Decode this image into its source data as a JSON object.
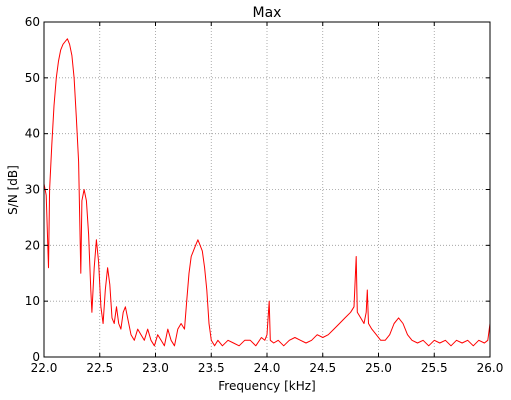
{
  "chart_data": {
    "type": "line",
    "title": "Max",
    "xlabel": "Frequency [kHz]",
    "ylabel": "S/N [dB]",
    "xlim": [
      22.0,
      26.0
    ],
    "ylim": [
      0,
      60
    ],
    "x_ticks": [
      "22.0",
      "22.5",
      "23.0",
      "23.5",
      "24.0",
      "24.5",
      "25.0",
      "25.5",
      "26.0"
    ],
    "y_ticks": [
      "0",
      "10",
      "20",
      "30",
      "40",
      "50",
      "60"
    ],
    "grid": true,
    "series": [
      {
        "color": "#ff0000",
        "points": [
          [
            22.0,
            31
          ],
          [
            22.02,
            29
          ],
          [
            22.04,
            16
          ],
          [
            22.05,
            30
          ],
          [
            22.07,
            38
          ],
          [
            22.09,
            45
          ],
          [
            22.11,
            50
          ],
          [
            22.13,
            53
          ],
          [
            22.15,
            55
          ],
          [
            22.17,
            56
          ],
          [
            22.19,
            56.5
          ],
          [
            22.21,
            57
          ],
          [
            22.23,
            56
          ],
          [
            22.25,
            54
          ],
          [
            22.27,
            50
          ],
          [
            22.29,
            43
          ],
          [
            22.31,
            35
          ],
          [
            22.32,
            25
          ],
          [
            22.33,
            15
          ],
          [
            22.34,
            28
          ],
          [
            22.36,
            30
          ],
          [
            22.38,
            28
          ],
          [
            22.4,
            22
          ],
          [
            22.42,
            12
          ],
          [
            22.43,
            8
          ],
          [
            22.45,
            16
          ],
          [
            22.47,
            21
          ],
          [
            22.49,
            17
          ],
          [
            22.51,
            9
          ],
          [
            22.53,
            6
          ],
          [
            22.55,
            12
          ],
          [
            22.57,
            16
          ],
          [
            22.59,
            13
          ],
          [
            22.61,
            7
          ],
          [
            22.63,
            6
          ],
          [
            22.65,
            9
          ],
          [
            22.67,
            6
          ],
          [
            22.69,
            5
          ],
          [
            22.71,
            8
          ],
          [
            22.73,
            9
          ],
          [
            22.75,
            7
          ],
          [
            22.78,
            4
          ],
          [
            22.81,
            3
          ],
          [
            22.84,
            5
          ],
          [
            22.87,
            4
          ],
          [
            22.9,
            3
          ],
          [
            22.93,
            5
          ],
          [
            22.96,
            3
          ],
          [
            22.99,
            2
          ],
          [
            23.02,
            4
          ],
          [
            23.05,
            3
          ],
          [
            23.08,
            2
          ],
          [
            23.11,
            5
          ],
          [
            23.14,
            3
          ],
          [
            23.17,
            2
          ],
          [
            23.2,
            5
          ],
          [
            23.23,
            6
          ],
          [
            23.26,
            5
          ],
          [
            23.28,
            10
          ],
          [
            23.3,
            15
          ],
          [
            23.32,
            18
          ],
          [
            23.34,
            19
          ],
          [
            23.36,
            20
          ],
          [
            23.38,
            21
          ],
          [
            23.4,
            20
          ],
          [
            23.42,
            19
          ],
          [
            23.44,
            16
          ],
          [
            23.46,
            12
          ],
          [
            23.48,
            6
          ],
          [
            23.5,
            3
          ],
          [
            23.53,
            2
          ],
          [
            23.56,
            3
          ],
          [
            23.6,
            2
          ],
          [
            23.65,
            3
          ],
          [
            23.7,
            2.5
          ],
          [
            23.75,
            2
          ],
          [
            23.8,
            3
          ],
          [
            23.85,
            3
          ],
          [
            23.9,
            2
          ],
          [
            23.95,
            3.5
          ],
          [
            23.98,
            3
          ],
          [
            24.0,
            4
          ],
          [
            24.02,
            10
          ],
          [
            24.03,
            3
          ],
          [
            24.06,
            2.5
          ],
          [
            24.1,
            3
          ],
          [
            24.15,
            2
          ],
          [
            24.2,
            3
          ],
          [
            24.25,
            3.5
          ],
          [
            24.3,
            3
          ],
          [
            24.35,
            2.5
          ],
          [
            24.4,
            3
          ],
          [
            24.45,
            4
          ],
          [
            24.5,
            3.5
          ],
          [
            24.55,
            4
          ],
          [
            24.6,
            5
          ],
          [
            24.65,
            6
          ],
          [
            24.7,
            7
          ],
          [
            24.75,
            8
          ],
          [
            24.78,
            9
          ],
          [
            24.8,
            18
          ],
          [
            24.81,
            8
          ],
          [
            24.84,
            7
          ],
          [
            24.87,
            6
          ],
          [
            24.89,
            8
          ],
          [
            24.9,
            12
          ],
          [
            24.91,
            6
          ],
          [
            24.94,
            5
          ],
          [
            24.98,
            4
          ],
          [
            25.02,
            3
          ],
          [
            25.06,
            3
          ],
          [
            25.1,
            4
          ],
          [
            25.14,
            6
          ],
          [
            25.18,
            7
          ],
          [
            25.22,
            6
          ],
          [
            25.26,
            4
          ],
          [
            25.3,
            3
          ],
          [
            25.35,
            2.5
          ],
          [
            25.4,
            3
          ],
          [
            25.45,
            2
          ],
          [
            25.5,
            3
          ],
          [
            25.55,
            2.5
          ],
          [
            25.6,
            3
          ],
          [
            25.65,
            2
          ],
          [
            25.7,
            3
          ],
          [
            25.75,
            2.5
          ],
          [
            25.8,
            3
          ],
          [
            25.85,
            2
          ],
          [
            25.9,
            3
          ],
          [
            25.95,
            2.5
          ],
          [
            25.98,
            3
          ],
          [
            26.0,
            6
          ]
        ]
      }
    ]
  }
}
